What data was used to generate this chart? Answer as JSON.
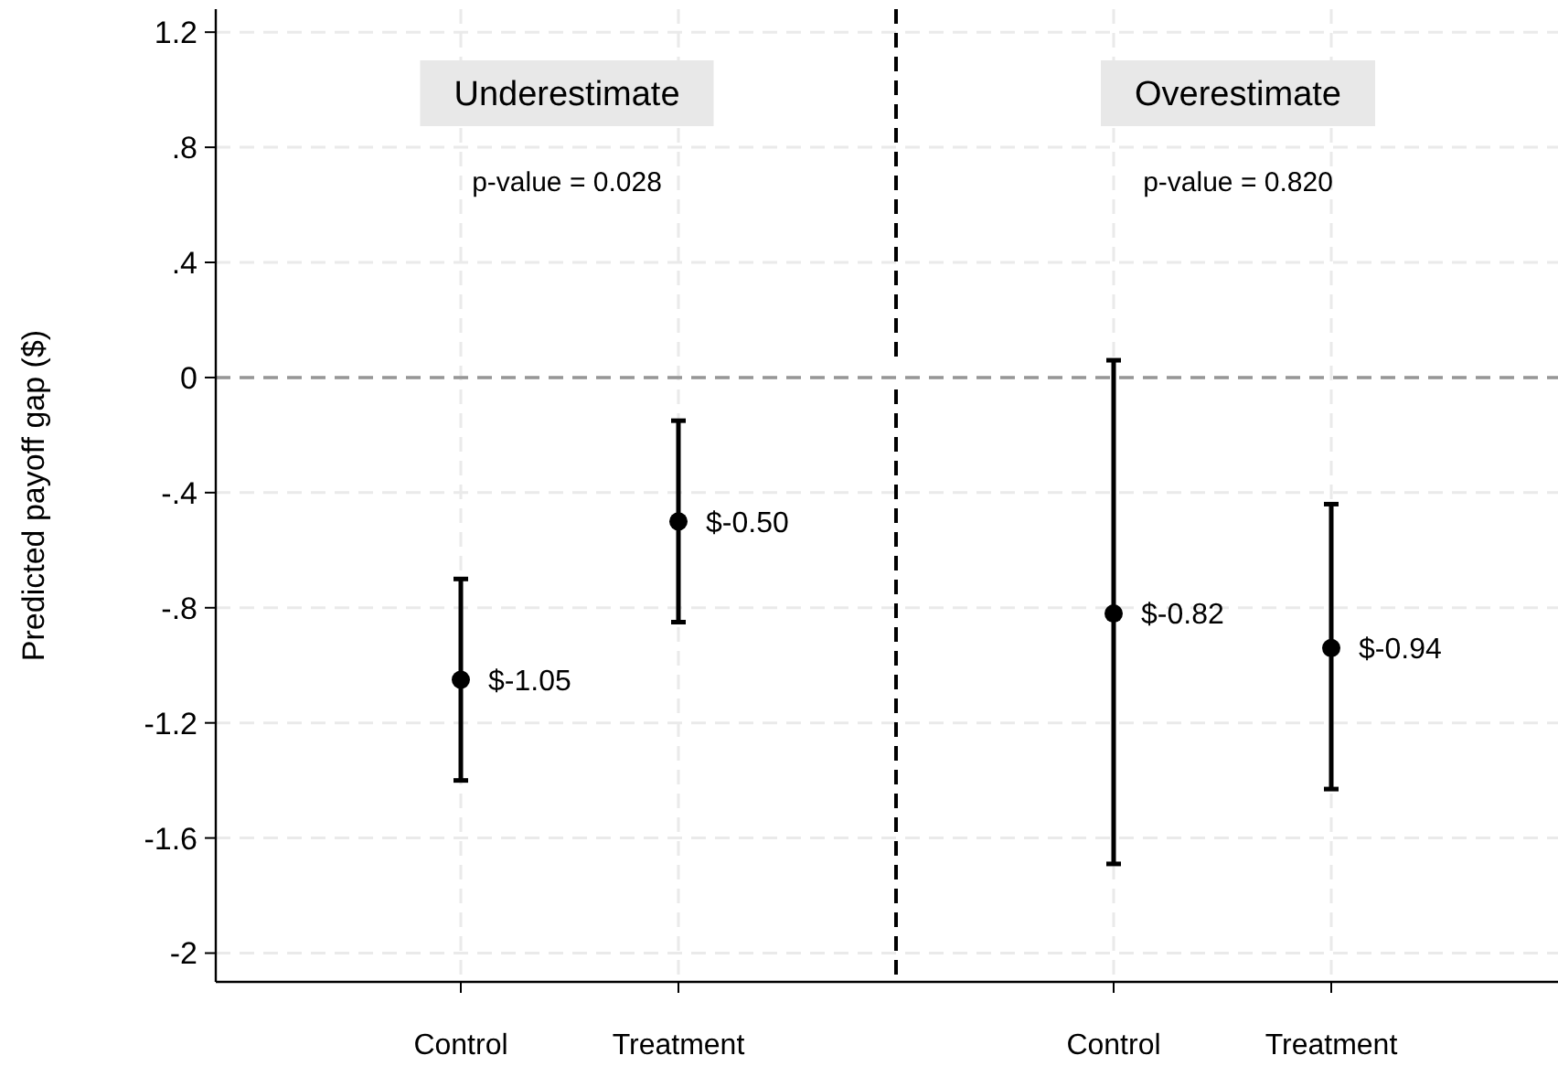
{
  "chart_data": {
    "type": "scatter",
    "ylabel": "Predicted payoff gap ($)",
    "categories": [
      "Control",
      "Treatment",
      null,
      "Control",
      "Treatment"
    ],
    "series": [
      {
        "color": "#000000",
        "values": [
          -1.05,
          -0.5,
          null,
          -0.82,
          -0.94
        ],
        "errors": [
          [
            -1.4,
            -0.7
          ],
          [
            -0.85,
            -0.15
          ],
          null,
          [
            -1.69,
            0.06
          ],
          [
            -1.43,
            -0.44
          ]
        ],
        "value_labels": [
          "$-1.05",
          "$-0.50",
          null,
          "$-0.82",
          "$-0.94"
        ]
      }
    ],
    "ylim": [
      -2.1,
      1.28
    ],
    "yticks": [
      {
        "value": 1.2,
        "label": "1.2"
      },
      {
        "value": 0.8,
        "label": ".8"
      },
      {
        "value": 0.4,
        "label": ".4"
      },
      0,
      {
        "value": -0.4,
        "label": "-.4"
      },
      {
        "value": -0.8,
        "label": "-.8"
      },
      {
        "value": -1.2,
        "label": "-1.2"
      },
      {
        "value": -1.6,
        "label": "-1.6"
      },
      {
        "value": -2,
        "label": "-2"
      }
    ],
    "ref_lines": [
      {
        "axis": "y",
        "value": 0,
        "color": "#969696",
        "line_style": "dashed"
      }
    ],
    "annotations": [
      "Underestimate",
      "p-value = 0.028",
      "Overestimate",
      "p-value = 0.820"
    ],
    "grid": true,
    "marker": "circle"
  }
}
